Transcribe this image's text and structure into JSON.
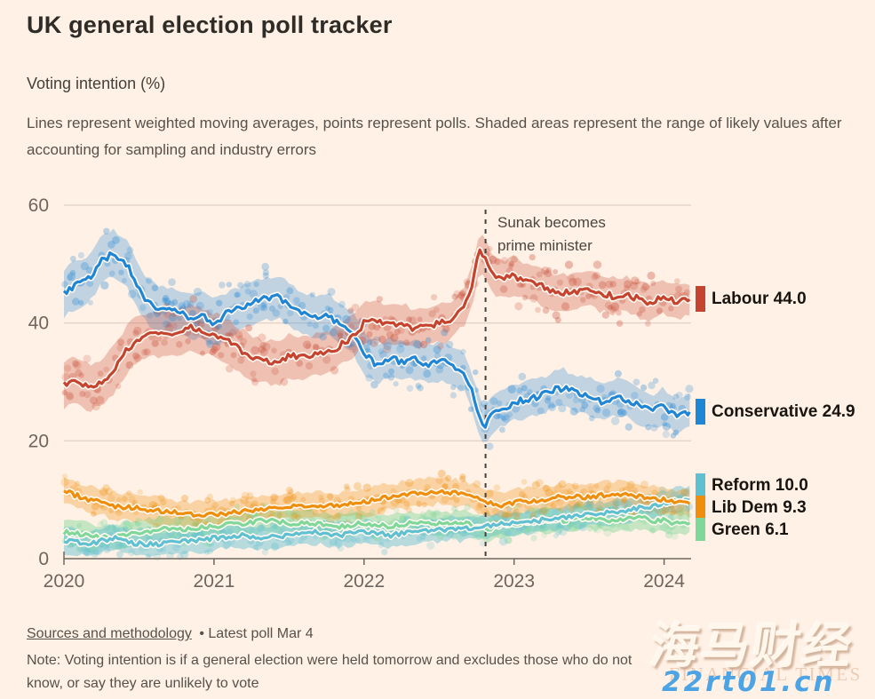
{
  "header": {
    "title": "UK general election poll tracker"
  },
  "subtitle": "Voting intention (%)",
  "description": "Lines represent weighted moving averages, points represent polls. Shaded areas represent the range of likely values after accounting for sampling and industry errors",
  "chart_data": {
    "type": "line",
    "title": "UK general election poll tracker",
    "ylabel": "Voting intention (%)",
    "xlim": [
      2020,
      2024.18
    ],
    "ylim": [
      0,
      60
    ],
    "x_ticks": [
      2020,
      2021,
      2022,
      2023,
      2024
    ],
    "y_ticks": [
      0,
      20,
      40,
      60
    ],
    "grid": true,
    "legend_position": "right",
    "annotation": {
      "x": 2022.81,
      "lines": [
        "Sunak becomes",
        "prime minister"
      ]
    },
    "series": [
      {
        "name": "Labour",
        "display_value": "44.0",
        "end_value": 44.0,
        "color": "#c5442f",
        "band_half": 3.5,
        "band_opacity": 0.28,
        "points": [
          [
            2020.0,
            29.5
          ],
          [
            2020.08,
            30.5
          ],
          [
            2020.17,
            29.0
          ],
          [
            2020.25,
            30.0
          ],
          [
            2020.33,
            32.0
          ],
          [
            2020.42,
            35.5
          ],
          [
            2020.5,
            37.5
          ],
          [
            2020.58,
            38.0
          ],
          [
            2020.67,
            38.5
          ],
          [
            2020.75,
            38.0
          ],
          [
            2020.83,
            39.5
          ],
          [
            2020.92,
            38.5
          ],
          [
            2021.0,
            38.0
          ],
          [
            2021.08,
            37.0
          ],
          [
            2021.17,
            35.5
          ],
          [
            2021.25,
            34.0
          ],
          [
            2021.33,
            33.5
          ],
          [
            2021.42,
            33.0
          ],
          [
            2021.5,
            34.5
          ],
          [
            2021.58,
            34.0
          ],
          [
            2021.67,
            34.5
          ],
          [
            2021.75,
            35.0
          ],
          [
            2021.83,
            36.0
          ],
          [
            2021.92,
            37.5
          ],
          [
            2022.0,
            40.0
          ],
          [
            2022.08,
            40.5
          ],
          [
            2022.17,
            39.5
          ],
          [
            2022.25,
            40.0
          ],
          [
            2022.33,
            39.0
          ],
          [
            2022.42,
            39.5
          ],
          [
            2022.5,
            40.0
          ],
          [
            2022.58,
            40.5
          ],
          [
            2022.67,
            43.0
          ],
          [
            2022.72,
            46.0
          ],
          [
            2022.77,
            52.5
          ],
          [
            2022.81,
            51.0
          ],
          [
            2022.85,
            48.5
          ],
          [
            2022.92,
            47.5
          ],
          [
            2023.0,
            48.0
          ],
          [
            2023.08,
            47.0
          ],
          [
            2023.17,
            46.5
          ],
          [
            2023.25,
            45.5
          ],
          [
            2023.33,
            45.0
          ],
          [
            2023.42,
            45.5
          ],
          [
            2023.5,
            46.0
          ],
          [
            2023.58,
            45.0
          ],
          [
            2023.67,
            44.5
          ],
          [
            2023.75,
            45.0
          ],
          [
            2023.83,
            44.0
          ],
          [
            2023.92,
            43.5
          ],
          [
            2024.0,
            44.5
          ],
          [
            2024.08,
            43.5
          ],
          [
            2024.17,
            44.0
          ]
        ]
      },
      {
        "name": "Conservative",
        "display_value": "24.9",
        "end_value": 24.9,
        "color": "#1f86d6",
        "band_half": 3.5,
        "band_opacity": 0.28,
        "points": [
          [
            2020.0,
            45.0
          ],
          [
            2020.08,
            46.5
          ],
          [
            2020.17,
            47.5
          ],
          [
            2020.25,
            50.5
          ],
          [
            2020.33,
            52.0
          ],
          [
            2020.42,
            50.0
          ],
          [
            2020.5,
            45.5
          ],
          [
            2020.58,
            43.0
          ],
          [
            2020.67,
            42.5
          ],
          [
            2020.75,
            42.0
          ],
          [
            2020.83,
            41.0
          ],
          [
            2020.92,
            41.5
          ],
          [
            2021.0,
            40.0
          ],
          [
            2021.08,
            41.5
          ],
          [
            2021.17,
            42.5
          ],
          [
            2021.25,
            43.5
          ],
          [
            2021.33,
            44.0
          ],
          [
            2021.42,
            44.5
          ],
          [
            2021.5,
            43.0
          ],
          [
            2021.58,
            42.0
          ],
          [
            2021.67,
            41.0
          ],
          [
            2021.75,
            41.5
          ],
          [
            2021.83,
            40.0
          ],
          [
            2021.92,
            38.5
          ],
          [
            2022.0,
            35.0
          ],
          [
            2022.08,
            33.0
          ],
          [
            2022.17,
            34.0
          ],
          [
            2022.25,
            33.5
          ],
          [
            2022.33,
            34.0
          ],
          [
            2022.42,
            33.0
          ],
          [
            2022.5,
            33.5
          ],
          [
            2022.58,
            33.0
          ],
          [
            2022.67,
            31.5
          ],
          [
            2022.72,
            28.5
          ],
          [
            2022.77,
            24.0
          ],
          [
            2022.81,
            22.5
          ],
          [
            2022.85,
            24.5
          ],
          [
            2022.92,
            25.5
          ],
          [
            2023.0,
            26.5
          ],
          [
            2023.08,
            27.0
          ],
          [
            2023.17,
            27.5
          ],
          [
            2023.25,
            28.5
          ],
          [
            2023.33,
            29.0
          ],
          [
            2023.42,
            28.0
          ],
          [
            2023.5,
            27.5
          ],
          [
            2023.58,
            26.5
          ],
          [
            2023.67,
            27.5
          ],
          [
            2023.75,
            27.0
          ],
          [
            2023.83,
            26.0
          ],
          [
            2023.92,
            25.0
          ],
          [
            2024.0,
            26.0
          ],
          [
            2024.08,
            24.0
          ],
          [
            2024.17,
            24.9
          ]
        ]
      },
      {
        "name": "Reform",
        "display_value": "10.0",
        "end_value": 10.0,
        "color": "#5fc0d2",
        "band_half": 2.0,
        "band_opacity": 0.45,
        "points": [
          [
            2020.0,
            3.0
          ],
          [
            2020.17,
            2.5
          ],
          [
            2020.33,
            3.5
          ],
          [
            2020.5,
            2.5
          ],
          [
            2020.67,
            2.5
          ],
          [
            2020.83,
            3.0
          ],
          [
            2021.0,
            3.5
          ],
          [
            2021.17,
            4.0
          ],
          [
            2021.33,
            3.5
          ],
          [
            2021.5,
            4.0
          ],
          [
            2021.67,
            4.5
          ],
          [
            2021.83,
            4.0
          ],
          [
            2022.0,
            4.5
          ],
          [
            2022.17,
            4.0
          ],
          [
            2022.33,
            4.5
          ],
          [
            2022.5,
            5.0
          ],
          [
            2022.67,
            5.0
          ],
          [
            2022.81,
            5.5
          ],
          [
            2022.92,
            6.0
          ],
          [
            2023.0,
            6.0
          ],
          [
            2023.17,
            6.5
          ],
          [
            2023.33,
            7.0
          ],
          [
            2023.5,
            7.5
          ],
          [
            2023.67,
            8.0
          ],
          [
            2023.83,
            8.5
          ],
          [
            2023.92,
            9.0
          ],
          [
            2024.0,
            9.5
          ],
          [
            2024.08,
            10.0
          ],
          [
            2024.17,
            10.0
          ]
        ]
      },
      {
        "name": "Lib Dem",
        "display_value": "9.3",
        "end_value": 9.3,
        "color": "#ee8e0c",
        "band_half": 2.2,
        "band_opacity": 0.3,
        "points": [
          [
            2020.0,
            11.5
          ],
          [
            2020.17,
            10.0
          ],
          [
            2020.33,
            9.0
          ],
          [
            2020.5,
            8.5
          ],
          [
            2020.67,
            8.0
          ],
          [
            2020.83,
            7.5
          ],
          [
            2021.0,
            7.5
          ],
          [
            2021.17,
            8.0
          ],
          [
            2021.33,
            8.5
          ],
          [
            2021.5,
            9.0
          ],
          [
            2021.67,
            9.0
          ],
          [
            2021.83,
            9.0
          ],
          [
            2022.0,
            9.5
          ],
          [
            2022.17,
            10.5
          ],
          [
            2022.33,
            11.0
          ],
          [
            2022.5,
            11.5
          ],
          [
            2022.67,
            11.0
          ],
          [
            2022.81,
            9.5
          ],
          [
            2022.92,
            9.0
          ],
          [
            2023.0,
            9.5
          ],
          [
            2023.17,
            10.0
          ],
          [
            2023.33,
            10.5
          ],
          [
            2023.5,
            10.5
          ],
          [
            2023.67,
            11.0
          ],
          [
            2023.83,
            10.5
          ],
          [
            2023.92,
            10.0
          ],
          [
            2024.0,
            10.0
          ],
          [
            2024.08,
            9.5
          ],
          [
            2024.17,
            9.3
          ]
        ]
      },
      {
        "name": "Green",
        "display_value": "6.1",
        "end_value": 6.1,
        "color": "#7fd89a",
        "band_half": 2.0,
        "band_opacity": 0.45,
        "points": [
          [
            2020.0,
            4.5
          ],
          [
            2020.17,
            4.0
          ],
          [
            2020.33,
            3.5
          ],
          [
            2020.5,
            4.5
          ],
          [
            2020.67,
            5.0
          ],
          [
            2020.83,
            5.0
          ],
          [
            2021.0,
            5.5
          ],
          [
            2021.17,
            6.0
          ],
          [
            2021.33,
            6.5
          ],
          [
            2021.5,
            6.0
          ],
          [
            2021.67,
            6.0
          ],
          [
            2021.83,
            5.5
          ],
          [
            2022.0,
            6.0
          ],
          [
            2022.17,
            5.5
          ],
          [
            2022.33,
            6.0
          ],
          [
            2022.5,
            6.0
          ],
          [
            2022.67,
            6.0
          ],
          [
            2022.81,
            5.0
          ],
          [
            2022.92,
            5.5
          ],
          [
            2023.0,
            6.0
          ],
          [
            2023.17,
            6.5
          ],
          [
            2023.33,
            6.5
          ],
          [
            2023.5,
            7.0
          ],
          [
            2023.67,
            6.5
          ],
          [
            2023.83,
            7.0
          ],
          [
            2023.92,
            6.5
          ],
          [
            2024.0,
            6.5
          ],
          [
            2024.08,
            6.0
          ],
          [
            2024.17,
            6.1
          ]
        ]
      }
    ]
  },
  "footer": {
    "link_label": "Sources and methodology",
    "latest": "• Latest poll Mar 4",
    "note": "Note: Voting intention is if a general election were held tomorrow and excludes those who do not know, or say they are unlikely to vote"
  },
  "watermark": {
    "cn": "海马财经",
    "ft": "FINANCIAL TIMES",
    "url": "22rt01.cn"
  }
}
